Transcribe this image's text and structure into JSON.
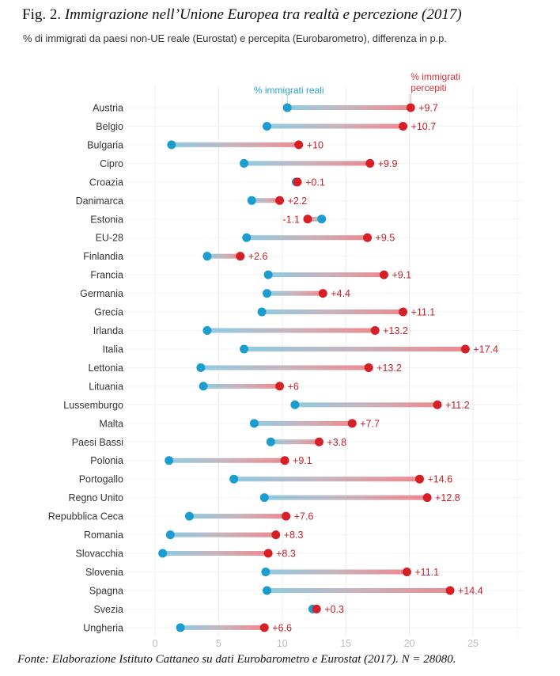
{
  "figure": {
    "label": "Fig. 2.",
    "title": "Immigrazione nell’Unione Europea tra realtà e percezione (2017)",
    "subtitle": "% di immigrati da paesi non-UE reale (Eurostat) e percepita (Eurobarometro), differenza in p.p.",
    "footer": "Fonte: Elaborazione Istituto Cattaneo su dati Eurobarometro e Eurostat (2017). N = 28080."
  },
  "chart_data": {
    "type": "dumbbell",
    "title": "Immigrazione nell’Unione Europea tra realtà e percezione (2017)",
    "subtitle": "% di immigrati da paesi non-UE reale (Eurostat) e percepita (Eurobarometro), differenza in p.p.",
    "xlabel": "",
    "ylabel": "",
    "xlim": [
      0,
      28
    ],
    "xticks": [
      0,
      5,
      10,
      15,
      20,
      25
    ],
    "grid": true,
    "legend": {
      "placement": "top",
      "real_label": "% immigrati reali",
      "perceived_label_line1": "% immigrati",
      "perceived_label_line2": "percepiti"
    },
    "colors": {
      "real": "#1b9dd0",
      "perceived": "#d71f26",
      "diff_label": "#c8202a"
    },
    "categories": [
      "Austria",
      "Belgio",
      "Bulgaria",
      "Cipro",
      "Croazia",
      "Danimarca",
      "Estonia",
      "EU-28",
      "Finlandia",
      "Francia",
      "Germania",
      "Grecia",
      "Irlanda",
      "Italia",
      "Lettonia",
      "Lituania",
      "Lussemburgo",
      "Malta",
      "Paesi Bassi",
      "Polonia",
      "Portogallo",
      "Regno Unito",
      "Repubblica Ceca",
      "Romania",
      "Slovacchia",
      "Slovenia",
      "Spagna",
      "Svezia",
      "Ungheria"
    ],
    "series": [
      {
        "name": "% immigrati reali",
        "values": [
          10.4,
          8.8,
          1.3,
          7.0,
          11.1,
          7.6,
          13.1,
          7.2,
          4.1,
          8.9,
          8.8,
          8.4,
          4.1,
          7.0,
          3.6,
          3.8,
          11.0,
          7.8,
          9.1,
          1.1,
          6.2,
          8.6,
          2.7,
          1.2,
          0.6,
          8.7,
          8.8,
          12.4,
          2.0
        ]
      },
      {
        "name": "% immigrati percepiti",
        "values": [
          20.1,
          19.5,
          11.3,
          16.9,
          11.2,
          9.8,
          12.0,
          16.7,
          6.7,
          18.0,
          13.2,
          19.5,
          17.3,
          24.4,
          16.8,
          9.8,
          22.2,
          15.5,
          12.9,
          10.2,
          20.8,
          21.4,
          10.3,
          9.5,
          8.9,
          19.8,
          23.2,
          12.7,
          8.6
        ]
      }
    ],
    "difference_labels": [
      "+9.7",
      "+10.7",
      "+10",
      "+9.9",
      "+0.1",
      "+2.2",
      "-1.1",
      "+9.5",
      "+2.6",
      "+9.1",
      "+4.4",
      "+11.1",
      "+13.2",
      "+17.4",
      "+13.2",
      "+6",
      "+11.2",
      "+7.7",
      "+3.8",
      "+9.1",
      "+14.6",
      "+12.8",
      "+7.6",
      "+8.3",
      "+8.3",
      "+11.1",
      "+14.4",
      "+0.3",
      "+6.6"
    ]
  }
}
